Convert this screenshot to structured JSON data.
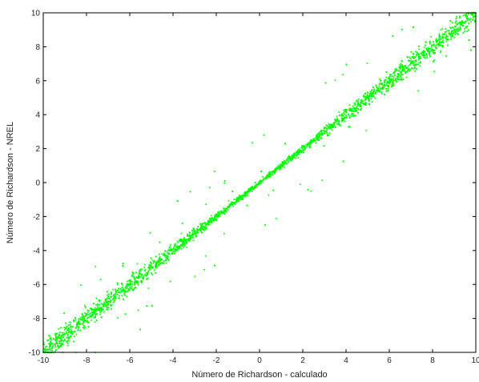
{
  "chart_data": {
    "type": "scatter",
    "title": "",
    "xlabel": "Número de Richardson - calculado",
    "ylabel": "Número de Richardson - NREL",
    "xlim": [
      -10,
      10
    ],
    "ylim": [
      -10,
      10
    ],
    "xticks": [
      -10,
      -8,
      -6,
      -4,
      -2,
      0,
      2,
      4,
      6,
      8,
      10
    ],
    "yticks": [
      -10,
      -8,
      -6,
      -4,
      -2,
      0,
      2,
      4,
      6,
      8,
      10
    ],
    "grid": false,
    "legend": "none",
    "marker_color": "#00ff00",
    "trend": {
      "slope": 1.0,
      "intercept": 0.0
    },
    "spread_by_x": [
      {
        "x": -10,
        "spread": 1.0
      },
      {
        "x": -6,
        "spread": 0.8
      },
      {
        "x": -2,
        "spread": 0.35
      },
      {
        "x": 0,
        "spread": 0.2
      },
      {
        "x": 2,
        "spread": 0.35
      },
      {
        "x": 6,
        "spread": 0.8
      },
      {
        "x": 10,
        "spread": 1.0
      }
    ],
    "density": "high"
  }
}
